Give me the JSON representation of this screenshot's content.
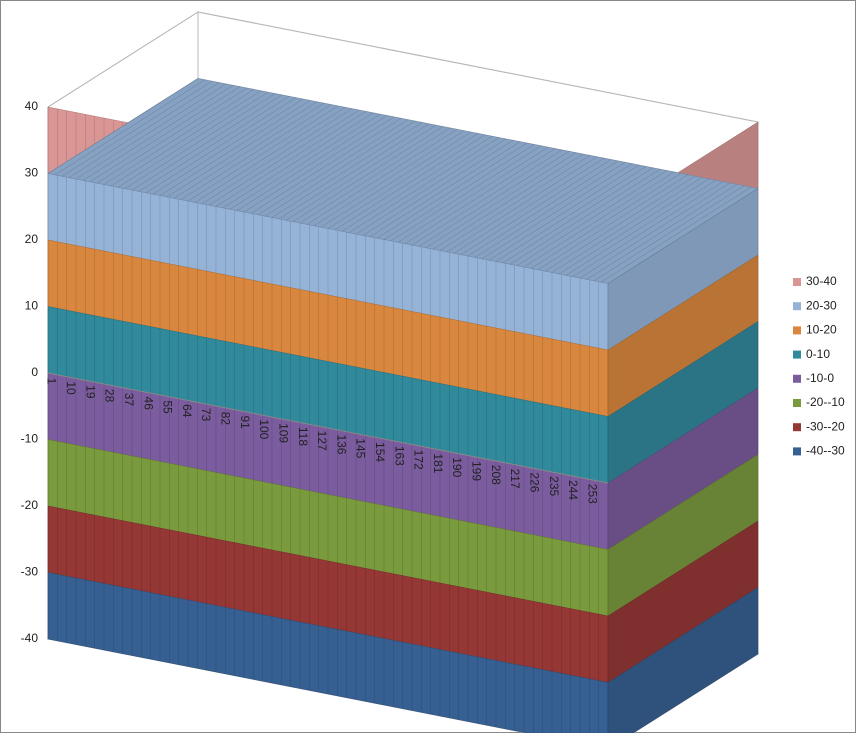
{
  "chart_data": {
    "type": "surface",
    "categories": [
      "1",
      "10",
      "19",
      "28",
      "37",
      "46",
      "55",
      "64",
      "73",
      "82",
      "91",
      "100",
      "109",
      "118",
      "127",
      "136",
      "145",
      "154",
      "163",
      "172",
      "181",
      "190",
      "199",
      "208",
      "217",
      "226",
      "235",
      "244",
      "253"
    ],
    "ylim": [
      -40,
      40
    ],
    "yticks": [
      -40,
      -30,
      -20,
      -10,
      0,
      10,
      20,
      30,
      40
    ],
    "series": [
      {
        "name": "30-40",
        "color": "#d99694",
        "range": [
          30,
          40
        ]
      },
      {
        "name": "20-30",
        "color": "#95b3d7",
        "range": [
          20,
          30
        ]
      },
      {
        "name": "10-20",
        "color": "#d9873e",
        "range": [
          10,
          20
        ]
      },
      {
        "name": "0-10",
        "color": "#31899c",
        "range": [
          0,
          10
        ]
      },
      {
        "name": "-10-0",
        "color": "#7b5c9e",
        "range": [
          -10,
          0
        ]
      },
      {
        "name": "-20--10",
        "color": "#7a9a3e",
        "range": [
          -20,
          -10
        ]
      },
      {
        "name": "-30--20",
        "color": "#953735",
        "range": [
          -30,
          -20
        ]
      },
      {
        "name": "-40--30",
        "color": "#376092",
        "range": [
          -40,
          -30
        ]
      }
    ],
    "legend": "right"
  }
}
